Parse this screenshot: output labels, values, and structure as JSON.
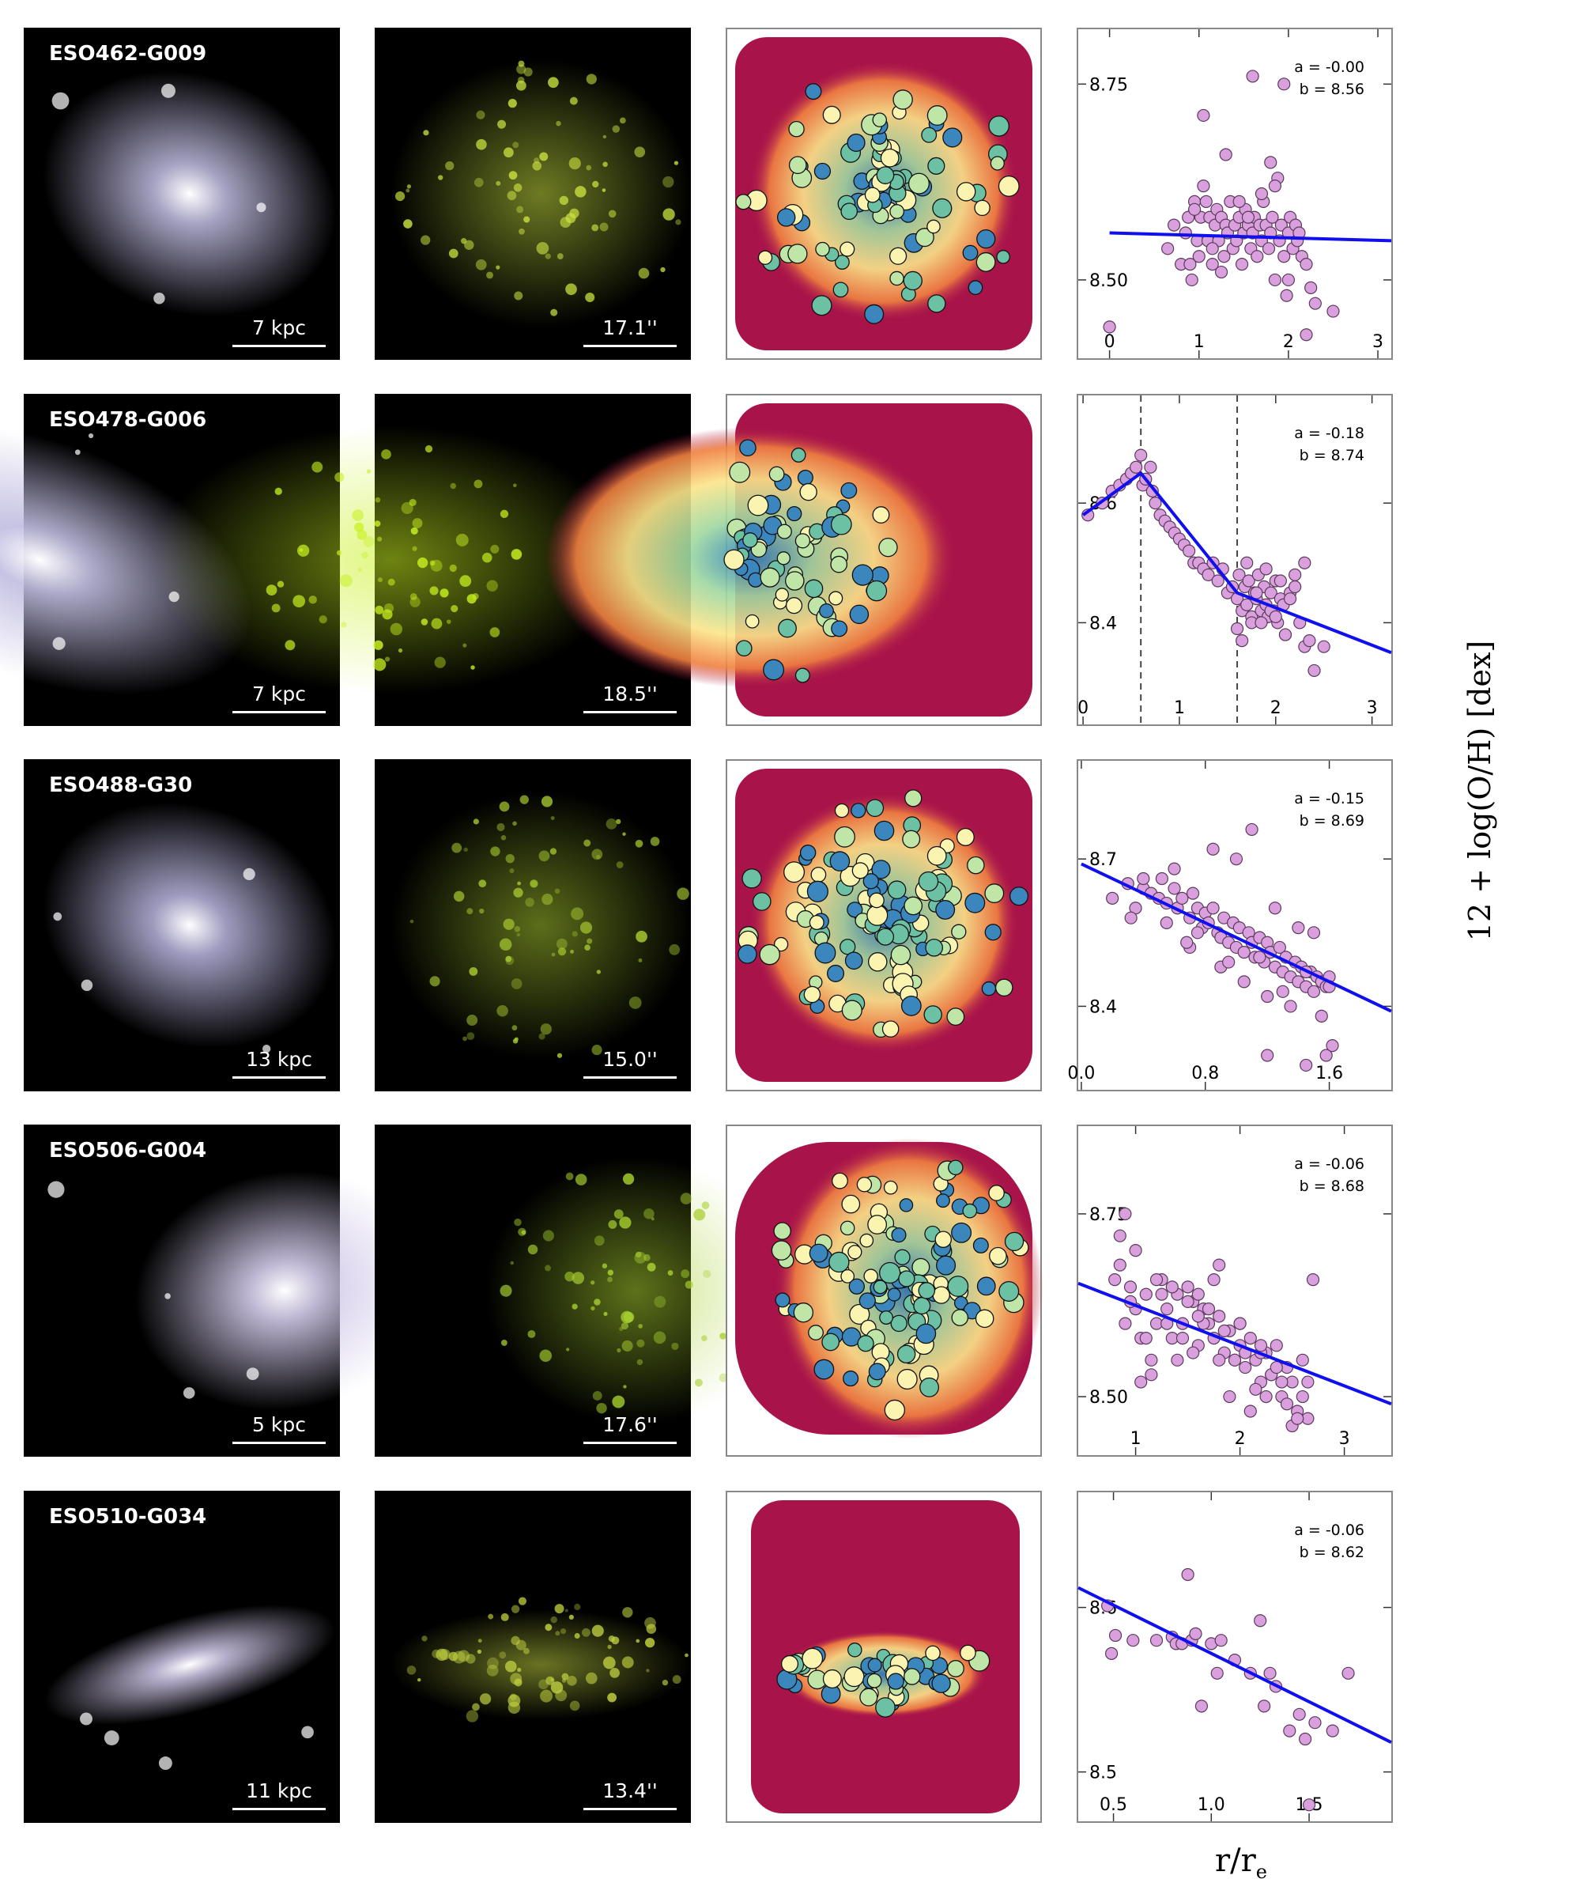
{
  "axis_labels": {
    "y": "12 + log(O/H) [dex]",
    "x_main": "r/r",
    "x_sub": "e"
  },
  "rows": [
    {
      "name": "ESO462-G009",
      "scale_kpc": "7 kpc",
      "scale_arcsec": "17.1''",
      "img_color": "#b8b4d8",
      "line_color": "#c8e040",
      "zero_weight": 0.4
    },
    {
      "name": "ESO478-G006",
      "scale_kpc": "7 kpc",
      "scale_arcsec": "18.5''",
      "img_color": "#c0bce0",
      "line_color": "#c8f020",
      "zero_weight": 0.55
    },
    {
      "name": "ESO488-G30",
      "scale_kpc": "13 kpc",
      "scale_arcsec": "15.0''",
      "img_color": "#b0acd4",
      "line_color": "#a8c830",
      "zero_weight": 0.45
    },
    {
      "name": "ESO506-G004",
      "scale_kpc": "5 kpc",
      "scale_arcsec": "17.6''",
      "img_color": "#d0c8e8",
      "line_color": "#a8d030",
      "zero_weight": 0.6
    },
    {
      "name": "ESO510-G034",
      "scale_kpc": "11 kpc",
      "scale_arcsec": "13.4''",
      "img_color": "#c8c0e0",
      "line_color": "#c0d040",
      "zero_weight": 0.3
    }
  ],
  "chart_data": [
    {
      "type": "scatter",
      "galaxy": "ESO462-G009",
      "a_label": "a = -0.00",
      "b_label": "b = 8.56",
      "xlim": [
        -0.35,
        3.15
      ],
      "ylim": [
        8.4,
        8.82
      ],
      "xticks": [
        0,
        1,
        2,
        3
      ],
      "yticks": [
        8.5,
        8.75
      ],
      "ytick_labels": [
        "8.50",
        "8.75"
      ],
      "xtick_labels": [
        "0",
        "1",
        "2",
        "3"
      ],
      "fit": {
        "x": [
          0,
          3.15
        ],
        "y": [
          8.56,
          8.55
        ]
      },
      "breaks": [],
      "x": [
        0.0,
        0.65,
        0.72,
        0.8,
        0.85,
        0.88,
        0.92,
        0.95,
        0.98,
        1.0,
        1.02,
        1.05,
        1.08,
        1.1,
        1.12,
        1.15,
        1.18,
        1.2,
        1.22,
        1.25,
        1.28,
        1.3,
        1.32,
        1.35,
        1.38,
        1.4,
        1.42,
        1.45,
        1.48,
        1.5,
        1.52,
        1.55,
        1.58,
        1.6,
        1.62,
        1.65,
        1.68,
        1.7,
        1.72,
        1.75,
        1.78,
        1.8,
        1.82,
        1.85,
        1.88,
        1.9,
        1.92,
        1.95,
        1.98,
        2.0,
        2.02,
        2.05,
        2.08,
        2.1,
        2.12,
        2.15,
        2.2,
        2.25,
        2.3,
        2.5,
        1.05,
        1.6,
        1.95,
        1.3,
        1.8,
        0.9,
        1.15,
        1.7,
        2.0,
        1.45,
        1.25,
        1.55,
        1.85,
        2.2,
        0.95
      ],
      "y": [
        8.44,
        8.54,
        8.57,
        8.52,
        8.56,
        8.58,
        8.5,
        8.6,
        8.55,
        8.53,
        8.58,
        8.71,
        8.6,
        8.55,
        8.58,
        8.52,
        8.57,
        8.59,
        8.55,
        8.58,
        8.53,
        8.57,
        8.56,
        8.6,
        8.54,
        8.57,
        8.55,
        8.58,
        8.52,
        8.56,
        8.59,
        8.57,
        8.54,
        8.56,
        8.58,
        8.53,
        8.57,
        8.55,
        8.6,
        8.57,
        8.54,
        8.56,
        8.58,
        8.5,
        8.63,
        8.55,
        8.57,
        8.53,
        8.48,
        8.56,
        8.58,
        8.54,
        8.57,
        8.55,
        8.56,
        8.53,
        8.52,
        8.49,
        8.47,
        8.46,
        8.62,
        8.76,
        8.75,
        8.66,
        8.65,
        8.52,
        8.54,
        8.61,
        8.5,
        8.6,
        8.51,
        8.58,
        8.62,
        8.43,
        8.59
      ]
    },
    {
      "type": "scatter",
      "galaxy": "ESO478-G006",
      "a_label": "a = -0.18",
      "b_label": "b = 8.74",
      "xlim": [
        -0.05,
        3.2
      ],
      "ylim": [
        8.23,
        8.78
      ],
      "xticks": [
        0,
        1,
        2,
        3
      ],
      "yticks": [
        8.4,
        8.6
      ],
      "ytick_labels": [
        "8.4",
        "8.6"
      ],
      "xtick_labels": [
        "0",
        "1",
        "2",
        "3"
      ],
      "fit": {
        "x": [
          0,
          0.6,
          1.6,
          3.2
        ],
        "y": [
          8.58,
          8.65,
          8.45,
          8.35
        ]
      },
      "breaks": [
        0.6,
        1.6
      ],
      "x": [
        0.05,
        0.2,
        0.3,
        0.38,
        0.45,
        0.5,
        0.55,
        0.6,
        0.62,
        0.65,
        0.7,
        0.72,
        0.75,
        0.8,
        0.85,
        0.9,
        0.95,
        1.0,
        1.05,
        1.1,
        1.15,
        1.2,
        1.25,
        1.3,
        1.35,
        1.4,
        1.45,
        1.5,
        1.55,
        1.6,
        1.62,
        1.65,
        1.68,
        1.7,
        1.72,
        1.75,
        1.78,
        1.8,
        1.82,
        1.85,
        1.88,
        1.9,
        1.92,
        1.95,
        1.98,
        2.0,
        2.02,
        2.05,
        2.08,
        2.1,
        2.15,
        2.2,
        2.25,
        2.3,
        2.35,
        2.4,
        2.5,
        2.2,
        1.7,
        1.9,
        2.05,
        1.75,
        1.6,
        1.8,
        1.95,
        2.1,
        2.3,
        1.85,
        1.65,
        2.0,
        2.15
      ],
      "y": [
        8.58,
        8.6,
        8.62,
        8.63,
        8.64,
        8.65,
        8.66,
        8.68,
        8.63,
        8.64,
        8.66,
        8.62,
        8.6,
        8.58,
        8.57,
        8.56,
        8.55,
        8.54,
        8.53,
        8.52,
        8.5,
        8.5,
        8.49,
        8.48,
        8.5,
        8.47,
        8.49,
        8.45,
        8.46,
        8.44,
        8.48,
        8.42,
        8.46,
        8.43,
        8.47,
        8.41,
        8.45,
        8.44,
        8.48,
        8.42,
        8.46,
        8.43,
        8.41,
        8.45,
        8.42,
        8.47,
        8.4,
        8.44,
        8.43,
        8.38,
        8.45,
        8.48,
        8.4,
        8.36,
        8.37,
        8.32,
        8.36,
        8.46,
        8.5,
        8.49,
        8.47,
        8.4,
        8.39,
        8.45,
        8.42,
        8.38,
        8.5,
        8.4,
        8.37,
        8.41,
        8.44
      ]
    },
    {
      "type": "scatter",
      "galaxy": "ESO488-G30",
      "a_label": "a = -0.15",
      "b_label": "b = 8.69",
      "xlim": [
        -0.02,
        2.0
      ],
      "ylim": [
        8.23,
        8.9
      ],
      "xticks": [
        0.0,
        0.8,
        1.6
      ],
      "yticks": [
        8.4,
        8.7
      ],
      "ytick_labels": [
        "8.4",
        "8.7"
      ],
      "xtick_labels": [
        "0.0",
        "0.8",
        "1.6"
      ],
      "fit": {
        "x": [
          0,
          2.0
        ],
        "y": [
          8.69,
          8.39
        ]
      },
      "breaks": [],
      "x": [
        0.2,
        0.3,
        0.35,
        0.4,
        0.45,
        0.5,
        0.52,
        0.55,
        0.6,
        0.62,
        0.65,
        0.7,
        0.72,
        0.75,
        0.78,
        0.8,
        0.82,
        0.85,
        0.88,
        0.9,
        0.92,
        0.95,
        0.98,
        1.0,
        1.02,
        1.05,
        1.08,
        1.1,
        1.12,
        1.15,
        1.18,
        1.2,
        1.22,
        1.25,
        1.28,
        1.3,
        1.32,
        1.35,
        1.38,
        1.4,
        1.42,
        1.45,
        1.48,
        1.5,
        1.52,
        1.55,
        1.58,
        1.6,
        0.4,
        0.6,
        0.85,
        1.0,
        1.1,
        1.25,
        1.4,
        1.5,
        0.7,
        0.9,
        1.05,
        1.2,
        1.35,
        0.55,
        0.75,
        1.15,
        1.45,
        0.32,
        0.68,
        0.95,
        1.3,
        1.6,
        1.58,
        1.62,
        1.45,
        1.55,
        1.2
      ],
      "y": [
        8.62,
        8.65,
        8.6,
        8.64,
        8.63,
        8.62,
        8.66,
        8.61,
        8.64,
        8.6,
        8.62,
        8.58,
        8.63,
        8.6,
        8.56,
        8.59,
        8.57,
        8.6,
        8.55,
        8.54,
        8.58,
        8.53,
        8.57,
        8.52,
        8.56,
        8.51,
        8.55,
        8.53,
        8.5,
        8.54,
        8.49,
        8.53,
        8.51,
        8.48,
        8.52,
        8.47,
        8.5,
        8.46,
        8.49,
        8.45,
        8.48,
        8.44,
        8.47,
        8.43,
        8.46,
        8.45,
        8.44,
        8.46,
        8.66,
        8.68,
        8.72,
        8.7,
        8.76,
        8.6,
        8.56,
        8.55,
        8.52,
        8.48,
        8.45,
        8.42,
        8.4,
        8.57,
        8.55,
        8.5,
        8.47,
        8.58,
        8.53,
        8.49,
        8.43,
        8.44,
        8.3,
        8.32,
        8.28,
        8.38,
        8.3
      ]
    },
    {
      "type": "scatter",
      "galaxy": "ESO506-G004",
      "a_label": "a = -0.06",
      "b_label": "b = 8.68",
      "xlim": [
        0.45,
        3.45
      ],
      "ylim": [
        8.42,
        8.87
      ],
      "xticks": [
        1,
        2,
        3
      ],
      "yticks": [
        8.5,
        8.75
      ],
      "ytick_labels": [
        "8.50",
        "8.75"
      ],
      "xtick_labels": [
        "1",
        "2",
        "3"
      ],
      "fit": {
        "x": [
          0.45,
          3.45
        ],
        "y": [
          8.655,
          8.49
        ]
      },
      "breaks": [],
      "x": [
        0.8,
        0.85,
        0.9,
        0.95,
        1.0,
        1.05,
        1.1,
        1.15,
        1.2,
        1.25,
        1.3,
        1.35,
        1.4,
        1.45,
        1.5,
        1.55,
        1.6,
        1.65,
        1.7,
        1.75,
        1.8,
        1.85,
        1.9,
        1.95,
        2.0,
        2.05,
        2.1,
        2.15,
        2.2,
        2.25,
        2.3,
        2.35,
        2.4,
        2.45,
        2.5,
        2.55,
        2.6,
        2.65,
        2.7,
        0.9,
        1.0,
        1.2,
        1.4,
        1.6,
        1.8,
        2.0,
        2.2,
        2.4,
        2.6,
        1.1,
        1.3,
        1.5,
        1.7,
        1.9,
        2.1,
        2.3,
        2.5,
        0.95,
        1.25,
        1.55,
        1.85,
        2.15,
        2.45,
        1.05,
        1.35,
        1.65,
        1.95,
        2.25,
        2.55,
        0.85,
        1.15,
        1.75,
        2.05,
        2.35,
        2.65,
        1.45,
        2.0,
        2.2,
        1.6,
        1.8
      ],
      "y": [
        8.66,
        8.72,
        8.6,
        8.65,
        8.62,
        8.58,
        8.64,
        8.55,
        8.6,
        8.66,
        8.62,
        8.58,
        8.64,
        8.6,
        8.65,
        8.63,
        8.57,
        8.62,
        8.6,
        8.58,
        8.61,
        8.56,
        8.59,
        8.55,
        8.57,
        8.54,
        8.58,
        8.55,
        8.52,
        8.56,
        8.53,
        8.57,
        8.5,
        8.54,
        8.52,
        8.48,
        8.55,
        8.47,
        8.66,
        8.75,
        8.7,
        8.66,
        8.55,
        8.64,
        8.68,
        8.6,
        8.56,
        8.52,
        8.5,
        8.58,
        8.6,
        8.63,
        8.62,
        8.5,
        8.48,
        8.53,
        8.46,
        8.63,
        8.64,
        8.56,
        8.59,
        8.51,
        8.49,
        8.52,
        8.65,
        8.6,
        8.55,
        8.5,
        8.47,
        8.68,
        8.53,
        8.66,
        8.56,
        8.54,
        8.52,
        8.58,
        8.6,
        8.57,
        8.61,
        8.55
      ]
    },
    {
      "type": "scatter",
      "galaxy": "ESO510-G034",
      "a_label": "a = -0.06",
      "b_label": "b = 8.62",
      "xlim": [
        0.32,
        1.92
      ],
      "ylim": [
        8.47,
        8.67
      ],
      "xticks": [
        0.5,
        1.0,
        1.5
      ],
      "yticks": [
        8.5,
        8.6
      ],
      "ytick_labels": [
        "8.5",
        "8.6"
      ],
      "xtick_labels": [
        "0.5",
        "1.0",
        "1.5"
      ],
      "fit": {
        "x": [
          0.32,
          1.92
        ],
        "y": [
          8.612,
          8.518
        ]
      },
      "breaks": [],
      "x": [
        0.47,
        0.49,
        0.51,
        0.6,
        0.72,
        0.8,
        0.82,
        0.85,
        0.88,
        0.9,
        0.92,
        0.95,
        1.0,
        1.03,
        1.05,
        1.12,
        1.2,
        1.25,
        1.27,
        1.3,
        1.33,
        1.4,
        1.45,
        1.48,
        1.5,
        1.53,
        1.62,
        1.7
      ],
      "y": [
        8.601,
        8.572,
        8.583,
        8.58,
        8.58,
        8.582,
        8.578,
        8.578,
        8.62,
        8.58,
        8.584,
        8.54,
        8.578,
        8.56,
        8.58,
        8.568,
        8.56,
        8.592,
        8.54,
        8.56,
        8.552,
        8.525,
        8.535,
        8.52,
        8.48,
        8.53,
        8.525,
        8.56
      ]
    }
  ]
}
